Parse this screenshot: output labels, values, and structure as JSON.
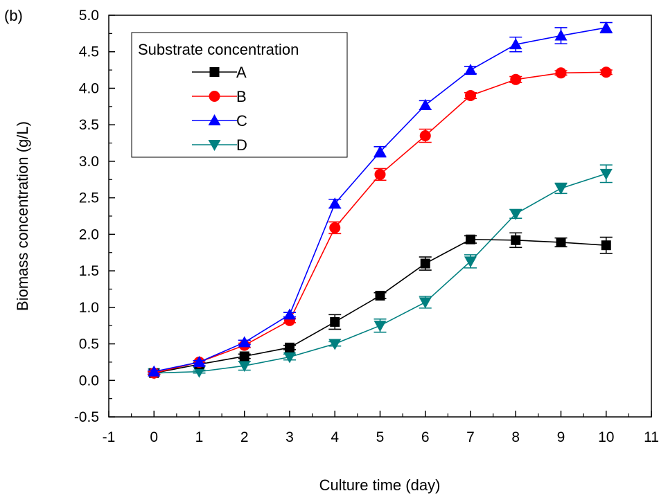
{
  "panel_label": "(b)",
  "chart_data": {
    "type": "line",
    "title": "",
    "xlabel": "Culture time (day)",
    "ylabel": "Biomass concentration (g/L)",
    "xlim": [
      -1,
      11
    ],
    "ylim": [
      -0.5,
      5.0
    ],
    "xticks": [
      -1,
      0,
      1,
      2,
      3,
      4,
      5,
      6,
      7,
      8,
      9,
      10,
      11
    ],
    "yticks": [
      -0.5,
      0.0,
      0.5,
      1.0,
      1.5,
      2.0,
      2.5,
      3.0,
      3.5,
      4.0,
      4.5,
      5.0
    ],
    "grid": false,
    "legend": {
      "title": "Substrate concentration",
      "placement": "top-left"
    },
    "x": [
      0,
      1,
      2,
      3,
      4,
      5,
      6,
      7,
      8,
      9,
      10
    ],
    "series": [
      {
        "name": "A",
        "marker": "square",
        "color": "#000000",
        "values": [
          0.1,
          0.22,
          0.33,
          0.45,
          0.8,
          1.16,
          1.6,
          1.93,
          1.92,
          1.89,
          1.85
        ],
        "errors": [
          0.02,
          0.02,
          0.03,
          0.03,
          0.1,
          0.04,
          0.09,
          0.05,
          0.1,
          0.06,
          0.11
        ]
      },
      {
        "name": "B",
        "marker": "circle",
        "color": "#ff0000",
        "values": [
          0.1,
          0.25,
          0.48,
          0.82,
          2.09,
          2.82,
          3.35,
          3.9,
          4.12,
          4.21,
          4.22
        ],
        "errors": [
          0.02,
          0.02,
          0.03,
          0.03,
          0.08,
          0.08,
          0.09,
          0.04,
          0.04,
          0.03,
          0.03
        ]
      },
      {
        "name": "C",
        "marker": "triangle-up",
        "color": "#0000ff",
        "values": [
          0.12,
          0.25,
          0.52,
          0.9,
          2.42,
          3.13,
          3.77,
          4.25,
          4.6,
          4.72,
          4.83
        ],
        "errors": [
          0.02,
          0.02,
          0.03,
          0.03,
          0.06,
          0.07,
          0.06,
          0.05,
          0.1,
          0.11,
          0.07
        ]
      },
      {
        "name": "D",
        "marker": "triangle-down",
        "color": "#008080",
        "values": [
          0.1,
          0.12,
          0.2,
          0.32,
          0.5,
          0.75,
          1.07,
          1.63,
          2.28,
          2.63,
          2.83
        ],
        "errors": [
          0.02,
          0.02,
          0.06,
          0.04,
          0.03,
          0.09,
          0.08,
          0.09,
          0.06,
          0.07,
          0.12
        ]
      }
    ]
  }
}
